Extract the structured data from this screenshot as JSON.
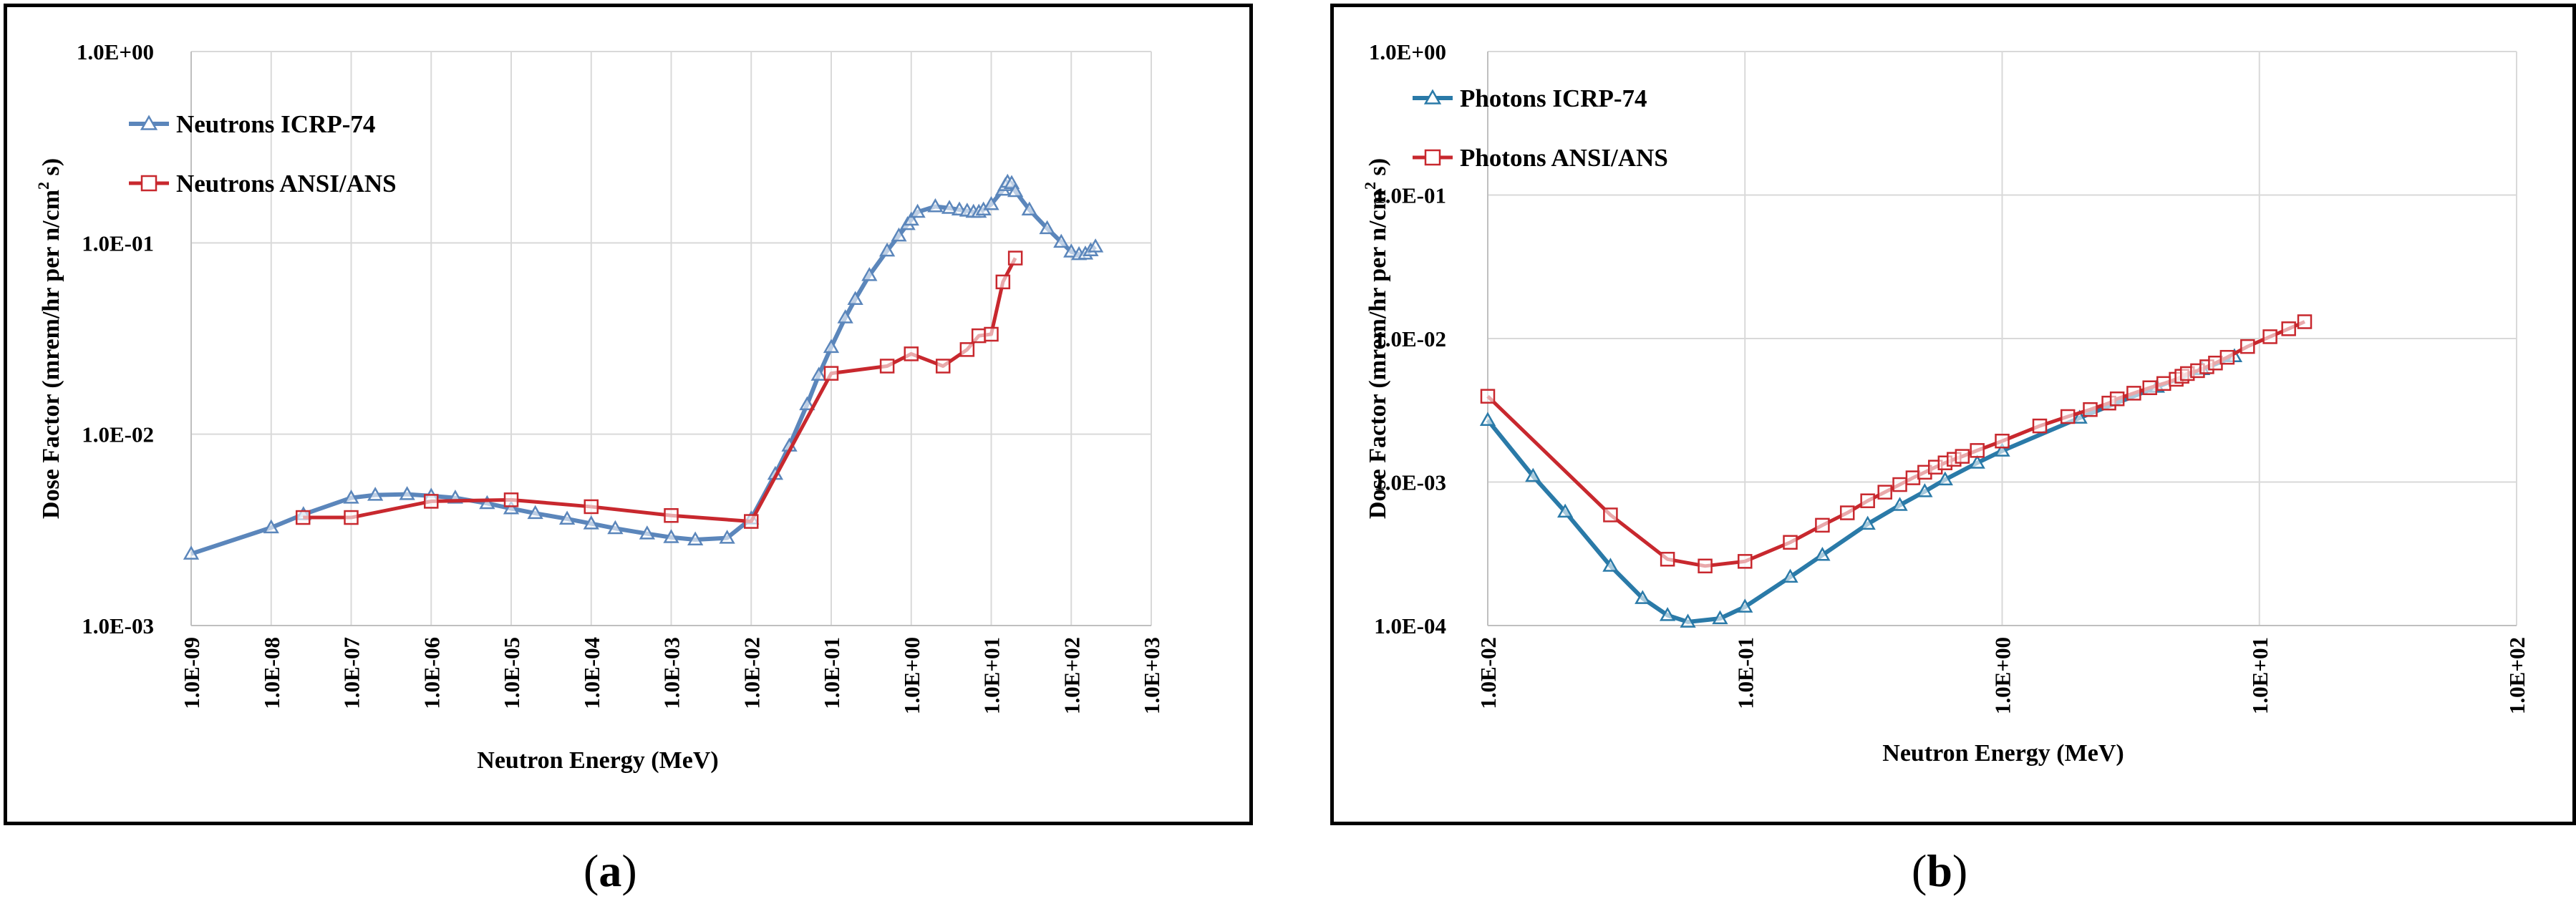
{
  "captions": {
    "a": "a",
    "b": "b"
  },
  "chart_data": [
    {
      "id": "a",
      "type": "line",
      "xscale": "log",
      "yscale": "log",
      "xlabel": "Neutron Energy (MeV)",
      "ylabel": "Dose Factor (mrem/hr per n/cm",
      "ylabel_sup": "2",
      "ylabel_tail": " s)",
      "xlim": [
        1e-09,
        1000
      ],
      "ylim": [
        0.001,
        1
      ],
      "xticks": [
        "1.0E-09",
        "1.0E-08",
        "1.0E-07",
        "1.0E-06",
        "1.0E-05",
        "1.0E-04",
        "1.0E-03",
        "1.0E-02",
        "1.0E-01",
        "1.0E+00",
        "1.0E+01",
        "1.0E+02",
        "1.0E+03"
      ],
      "yticks": [
        "1.0E+00",
        "1.0E-01",
        "1.0E-02",
        "1.0E-03"
      ],
      "legend_position": "top-left",
      "series": [
        {
          "name": "Neutrons ICRP-74",
          "color": "#5b86bb",
          "marker": "triangle",
          "x": [
            1e-09,
            1e-08,
            2.53e-08,
            1e-07,
            2e-07,
            5e-07,
            1e-06,
            2e-06,
            5e-06,
            1e-05,
            2e-05,
            5e-05,
            0.0001,
            0.0002,
            0.0005,
            0.001,
            0.002,
            0.005,
            0.01,
            0.02,
            0.03,
            0.05,
            0.07,
            0.1,
            0.15,
            0.2,
            0.3,
            0.5,
            0.7,
            0.9,
            1,
            1.2,
            2,
            3,
            4,
            5,
            6,
            7,
            8,
            10,
            14,
            15,
            16,
            18,
            20,
            30,
            50,
            75,
            100,
            125,
            150,
            175,
            201
          ],
          "y": [
            0.00237,
            0.00325,
            0.00381,
            0.00465,
            0.00481,
            0.00485,
            0.00476,
            0.00465,
            0.00435,
            0.00409,
            0.00386,
            0.00361,
            0.00341,
            0.00322,
            0.00302,
            0.00289,
            0.00281,
            0.00287,
            0.00362,
            0.00619,
            0.0087,
            0.0143,
            0.0204,
            0.0285,
            0.0407,
            0.0508,
            0.0677,
            0.0909,
            0.109,
            0.125,
            0.132,
            0.145,
            0.155,
            0.152,
            0.149,
            0.147,
            0.145,
            0.145,
            0.149,
            0.159,
            0.189,
            0.2,
            0.208,
            0.205,
            0.186,
            0.149,
            0.119,
            0.101,
            0.0899,
            0.0871,
            0.0877,
            0.0912,
            0.0955
          ]
        },
        {
          "name": "Neutrons ANSI/ANS",
          "color": "#c8282e",
          "marker": "square",
          "x": [
            2.5e-08,
            1e-07,
            1e-06,
            1e-05,
            0.0001,
            0.001,
            0.01,
            0.1,
            0.5,
            1,
            2.5,
            5,
            7,
            10,
            14,
            20
          ],
          "y": [
            0.00367,
            0.00367,
            0.00446,
            0.00454,
            0.00418,
            0.00376,
            0.0035,
            0.0208,
            0.0227,
            0.0263,
            0.0227,
            0.0277,
            0.0327,
            0.0333,
            0.0625,
            0.0833
          ]
        }
      ]
    },
    {
      "id": "b",
      "type": "line",
      "xscale": "log",
      "yscale": "log",
      "xlabel": "Neutron Energy (MeV)",
      "ylabel": "Dose Factor (mrem/hr per n/cm",
      "ylabel_sup": "2",
      "ylabel_tail": " s)",
      "xlim": [
        0.01,
        100
      ],
      "ylim": [
        0.0001,
        1
      ],
      "xticks": [
        "1.0E-02",
        "1.0E-01",
        "1.0E+00",
        "1.0E+01",
        "1.0E+02"
      ],
      "yticks": [
        "1.0E+00",
        "1.0E-01",
        "1.0E-02",
        "1.0E-03",
        "1.0E-04"
      ],
      "legend_position": "top-left",
      "series": [
        {
          "name": "Photons ICRP-74",
          "color": "#2a7aa8",
          "marker": "triangle",
          "x": [
            0.01,
            0.015,
            0.02,
            0.03,
            0.04,
            0.05,
            0.06,
            0.08,
            0.1,
            0.15,
            0.2,
            0.3,
            0.4,
            0.5,
            0.6,
            0.8,
            1,
            2,
            4,
            6,
            8
          ],
          "y": [
            0.0027,
            0.0011,
            0.00062,
            0.00026,
            0.000155,
            0.000118,
            0.000106,
            0.000112,
            0.000135,
            0.000218,
            0.00031,
            0.00051,
            0.00069,
            0.00086,
            0.00104,
            0.00136,
            0.00165,
            0.0028,
            0.0046,
            0.0061,
            0.0075
          ]
        },
        {
          "name": "Photons ANSI/ANS",
          "color": "#c8282e",
          "marker": "square",
          "x": [
            0.01,
            0.03,
            0.05,
            0.07,
            0.1,
            0.15,
            0.2,
            0.25,
            0.3,
            0.35,
            0.4,
            0.45,
            0.5,
            0.55,
            0.6,
            0.65,
            0.7,
            0.8,
            1,
            1.4,
            1.8,
            2.2,
            2.6,
            2.8,
            3.25,
            3.75,
            4.25,
            4.75,
            5,
            5.25,
            5.75,
            6.25,
            6.75,
            7.5,
            9,
            11,
            13,
            15
          ],
          "y": [
            0.00396,
            0.00059,
            0.00029,
            0.00026,
            0.00028,
            0.00038,
            0.0005,
            0.00061,
            0.00074,
            0.00085,
            0.00096,
            0.00107,
            0.00117,
            0.00127,
            0.00136,
            0.00144,
            0.00151,
            0.00166,
            0.00193,
            0.00246,
            0.00286,
            0.0032,
            0.00355,
            0.0038,
            0.00416,
            0.00454,
            0.00486,
            0.0052,
            0.00546,
            0.0057,
            0.00597,
            0.00636,
            0.00675,
            0.0074,
            0.0088,
            0.0103,
            0.0117,
            0.0131
          ]
        }
      ]
    }
  ]
}
